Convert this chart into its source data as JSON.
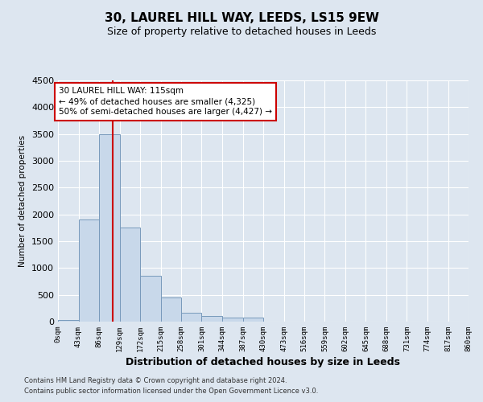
{
  "title1": "30, LAUREL HILL WAY, LEEDS, LS15 9EW",
  "title2": "Size of property relative to detached houses in Leeds",
  "xlabel": "Distribution of detached houses by size in Leeds",
  "ylabel": "Number of detached properties",
  "bin_edges": [
    0,
    43,
    86,
    129,
    172,
    215,
    258,
    301,
    344,
    387,
    430,
    473,
    516,
    559,
    602,
    645,
    688,
    731,
    774,
    817,
    860
  ],
  "bar_heights": [
    30,
    1900,
    3500,
    1750,
    850,
    450,
    160,
    100,
    80,
    70,
    0,
    0,
    0,
    0,
    0,
    0,
    0,
    0,
    0,
    0
  ],
  "bar_color": "#c8d8ea",
  "bar_edge_color": "#7799bb",
  "vline_x": 115,
  "vline_color": "#cc0000",
  "ylim": [
    0,
    4500
  ],
  "yticks": [
    0,
    500,
    1000,
    1500,
    2000,
    2500,
    3000,
    3500,
    4000,
    4500
  ],
  "annotation_text": "30 LAUREL HILL WAY: 115sqm\n← 49% of detached houses are smaller (4,325)\n50% of semi-detached houses are larger (4,427) →",
  "annotation_box_color": "#ffffff",
  "annotation_box_edge": "#cc0000",
  "footnote1": "Contains HM Land Registry data © Crown copyright and database right 2024.",
  "footnote2": "Contains public sector information licensed under the Open Government Licence v3.0.",
  "background_color": "#dde6f0",
  "plot_bg_color": "#dde6f0",
  "title1_fontsize": 11,
  "title2_fontsize": 9,
  "tick_labels": [
    "0sqm",
    "43sqm",
    "86sqm",
    "129sqm",
    "172sqm",
    "215sqm",
    "258sqm",
    "301sqm",
    "344sqm",
    "387sqm",
    "430sqm",
    "473sqm",
    "516sqm",
    "559sqm",
    "602sqm",
    "645sqm",
    "688sqm",
    "731sqm",
    "774sqm",
    "817sqm",
    "860sqm"
  ]
}
